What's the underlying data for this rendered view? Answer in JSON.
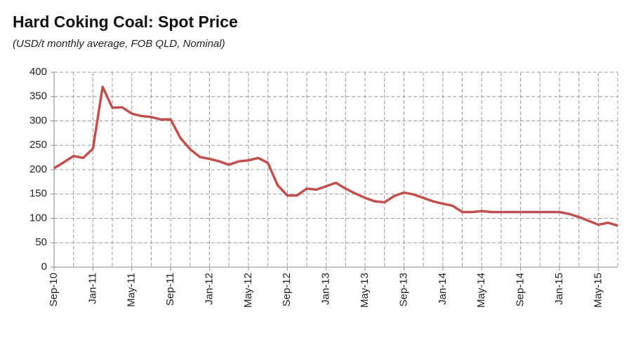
{
  "chart_data": {
    "type": "line",
    "title": "Hard Coking Coal: Spot Price",
    "subtitle": "(USD/t monthly average, FOB QLD, Nominal)",
    "categories": [
      "Sep-10",
      null,
      null,
      null,
      "Jan-11",
      null,
      null,
      null,
      "May-11",
      null,
      null,
      null,
      "Sep-11",
      null,
      null,
      null,
      "Jan-12",
      null,
      null,
      null,
      "May-12",
      null,
      null,
      null,
      "Sep-12",
      null,
      null,
      null,
      "Jan-13",
      null,
      null,
      null,
      "May-13",
      null,
      null,
      null,
      "Sep-13",
      null,
      null,
      null,
      "Jan-14",
      null,
      null,
      null,
      "May-14",
      null,
      null,
      null,
      "Sep-14",
      null,
      null,
      null,
      "Jan-15",
      null,
      null,
      null,
      "May-15",
      null,
      null
    ],
    "series": [
      {
        "name": "Hard coking coal",
        "color": "#c0504d",
        "values": [
          203,
          215,
          228,
          224,
          243,
          370,
          327,
          328,
          315,
          310,
          308,
          303,
          303,
          265,
          242,
          226,
          222,
          217,
          210,
          217,
          219,
          224,
          214,
          168,
          147,
          147,
          161,
          159,
          166,
          173,
          161,
          151,
          142,
          135,
          133,
          146,
          153,
          149,
          142,
          135,
          130,
          126,
          113,
          113,
          115,
          113,
          113,
          113,
          113,
          113,
          113,
          113,
          113,
          109,
          103,
          95,
          87,
          91,
          85
        ]
      }
    ],
    "ylim": [
      0,
      400
    ],
    "yticks": [
      0,
      50,
      100,
      150,
      200,
      250,
      300,
      350,
      400
    ],
    "grid": true
  }
}
